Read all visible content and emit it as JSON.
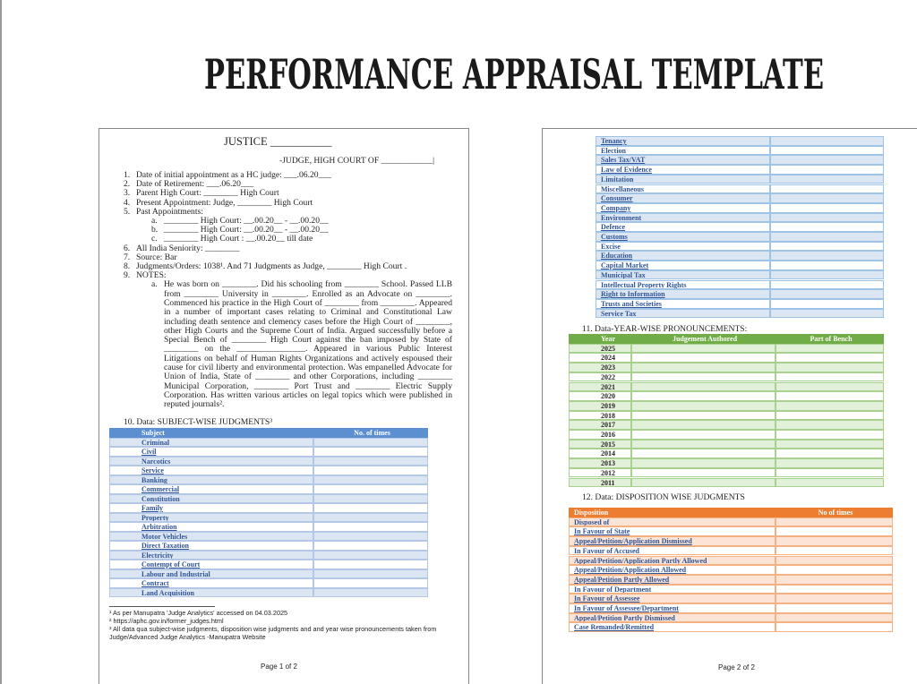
{
  "title": "PERFORMANCE APPRAISAL TEMPLATE",
  "page1": {
    "heading": "JUSTICE ___________",
    "subheading": "-JUDGE, HIGH COURT OF ____________|",
    "items": [
      {
        "number": "1.",
        "text": "Date of initial appointment as a HC judge: ___.06.20___"
      },
      {
        "number": "2.",
        "text": "Date of Retirement: ___.06.20___"
      },
      {
        "number": "3.",
        "text": "Parent High Court: ________ High Court"
      },
      {
        "number": "4.",
        "text": "Present Appointment: Judge, ________ High Court"
      },
      {
        "number": "5.",
        "text": "Past Appointments:",
        "sub": [
          {
            "letter": "a.",
            "text": "________ High Court: __.00.20__ - __.00.20__"
          },
          {
            "letter": "b.",
            "text": "________ High Court: __.00.20__ - __.00.20__"
          },
          {
            "letter": "c.",
            "text": "________ High Court : __.00.20__ till date"
          }
        ]
      },
      {
        "number": "6.",
        "text": "All India Seniority: ________"
      },
      {
        "number": "7.",
        "text": "Source: Bar"
      },
      {
        "number": "8.",
        "text": "Judgments/Orders: 1038¹. And 71 Judgments as Judge, ________ High Court ."
      },
      {
        "number": "9.",
        "text": "NOTES:",
        "sub": [
          {
            "letter": "a.",
            "text": "He was born on ________. Did his schooling from ________ School. Passed LLB from ________ University in ________. Enrolled as an Advocate on ________. Commenced his practice in the High Court of ________ from ________. Appeared in a number of important cases relating to Criminal and Constitutional Law including death sentence and clemency cases before the High Court of ________, other High Courts and the Supreme Court of India. Argued successfully before a Special Bench of ________ High Court against the ban imposed by State of ________ on the ________________. Appeared in various Public Interest Litigations on behalf of Human Rights Organizations and actively espoused their cause for civil liberty and environmental protection. Was empanelled Advocate for Union of India, State of ________ and other Corporations, including ________ Municipal Corporation, ________ Port Trust and ________ Electric Supply Corporation. Has written various articles on legal topics which were published in reputed journals²."
          }
        ]
      }
    ],
    "subject_table": {
      "title": "10. Data: SUBJECT-WISE JUDGMENTS³",
      "headers": [
        "Subject",
        "No. of times"
      ],
      "rows": [
        "Criminal",
        "Civil",
        "Narcotics",
        "Service",
        "Banking",
        "Commercial",
        "Constitution",
        "Family",
        "Property",
        "Arbitration",
        "Motor Vehicles",
        "Direct Taxation",
        "Electricity",
        "Contempt of Court",
        "Labour and Industrial",
        "Contract",
        "Land Acquisition"
      ]
    },
    "footnotes": [
      "¹ As per Manupatra 'Judge Analytics' accessed on 04.03.2025",
      "² https://aphc.gov.in/former_judges.html",
      "³ All data qua subject-wise judgments, disposition wise judgments and and year wise pronouncements taken from Judge/Advanced Judge Analytics -Manupatra Website"
    ],
    "page_label": "Page 1 of 2"
  },
  "page2": {
    "subject_rows": [
      "Tenancy",
      "Election",
      "Sales Tax/VAT",
      "Law of Evidence",
      "Limitation",
      "Miscellaneous",
      "Consumer",
      "Company",
      "Environment",
      "Defence",
      "Customs",
      "Excise",
      "Education",
      "Capital Market",
      "Municipal Tax",
      "Intellectual Property Rights",
      "Right to Information",
      "Trusts and Societies",
      "Service Tax"
    ],
    "year_table": {
      "title": "11. Data-YEAR-WISE PRONOUNCEMENTS:",
      "headers": [
        "Year",
        "Judgement Authored",
        "Part of Bench"
      ],
      "rows": [
        "2025",
        "2024",
        "2023",
        "2022",
        "2021",
        "2020",
        "2019",
        "2018",
        "2017",
        "2016",
        "2015",
        "2014",
        "2013",
        "2012",
        "2011"
      ]
    },
    "disposition_table": {
      "title": "12. Data: DISPOSITION WISE JUDGMENTS",
      "headers": [
        "Disposition",
        "No of times"
      ],
      "rows": [
        "Disposed of",
        "In Favour of State",
        "Appeal/Petition/Application Dismissed",
        "In Favour of Accused",
        "Appeal/Petition/Application Partly Allowed",
        "Appeal/Petition/Application Allowed",
        "Appeal/Petition Partly Allowed",
        "In Favour of Department",
        "In Favour of Assessee",
        "In Favour of Assessee/Department",
        "Appeal/Petition Partly Dismissed",
        "Case Remanded/Remitted"
      ]
    },
    "page_label": "Page 2 of 2"
  }
}
